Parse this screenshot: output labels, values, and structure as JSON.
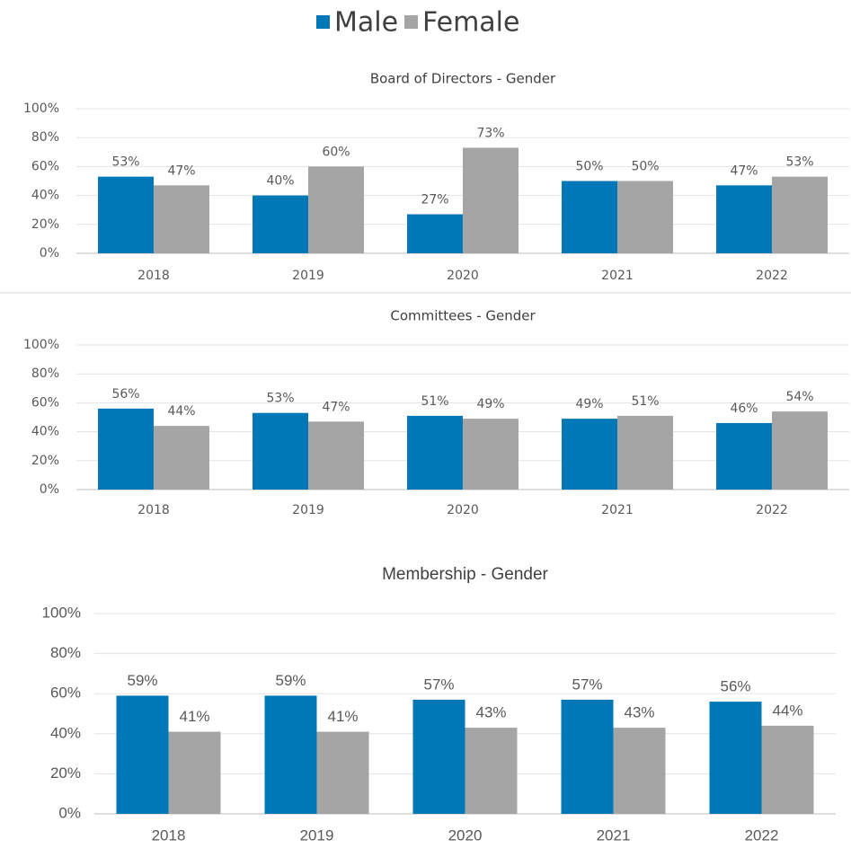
{
  "legend": {
    "items": [
      {
        "name": "Male",
        "color": "#0077b6"
      },
      {
        "name": "Female",
        "color": "#a5a5a5"
      }
    ]
  },
  "chart_data": [
    {
      "type": "bar",
      "title": "Board of Directors - Gender",
      "categories": [
        "2018",
        "2019",
        "2020",
        "2021",
        "2022"
      ],
      "series": [
        {
          "values": [
            53,
            40,
            27,
            50,
            47
          ],
          "value_labels": [
            "53%",
            "40%",
            "27%",
            "50%",
            "47%"
          ]
        },
        {
          "values": [
            47,
            60,
            73,
            50,
            53
          ],
          "value_labels": [
            "47%",
            "60%",
            "73%",
            "50%",
            "53%"
          ]
        }
      ],
      "ylim": [
        0,
        100
      ],
      "yticks": [
        {
          "value": 0,
          "label": "0%"
        },
        {
          "value": 20,
          "label": "20%"
        },
        {
          "value": 40,
          "label": "40%"
        },
        {
          "value": 60,
          "label": "60%"
        },
        {
          "value": 80,
          "label": "80%"
        },
        {
          "value": 100,
          "label": "100%"
        }
      ],
      "grid": true
    },
    {
      "type": "bar",
      "title": "Committees - Gender",
      "categories": [
        "2018",
        "2019",
        "2020",
        "2021",
        "2022"
      ],
      "series": [
        {
          "values": [
            56,
            53,
            51,
            49,
            46
          ],
          "value_labels": [
            "56%",
            "53%",
            "51%",
            "49%",
            "46%"
          ]
        },
        {
          "values": [
            44,
            47,
            49,
            51,
            54
          ],
          "value_labels": [
            "44%",
            "47%",
            "49%",
            "51%",
            "54%"
          ]
        }
      ],
      "ylim": [
        0,
        100
      ],
      "yticks": [
        {
          "value": 0,
          "label": "0%"
        },
        {
          "value": 20,
          "label": "20%"
        },
        {
          "value": 40,
          "label": "40%"
        },
        {
          "value": 60,
          "label": "60%"
        },
        {
          "value": 80,
          "label": "80%"
        },
        {
          "value": 100,
          "label": "100%"
        }
      ],
      "grid": true
    },
    {
      "type": "bar",
      "title": "Membership - Gender",
      "categories": [
        "2018",
        "2019",
        "2020",
        "2021",
        "2022"
      ],
      "series": [
        {
          "values": [
            59,
            59,
            57,
            57,
            56
          ],
          "value_labels": [
            "59%",
            "59%",
            "57%",
            "57%",
            "56%"
          ]
        },
        {
          "values": [
            41,
            41,
            43,
            43,
            44
          ],
          "value_labels": [
            "41%",
            "41%",
            "43%",
            "43%",
            "44%"
          ]
        }
      ],
      "ylim": [
        0,
        100
      ],
      "yticks": [
        {
          "value": 0,
          "label": "0%"
        },
        {
          "value": 20,
          "label": "20%"
        },
        {
          "value": 40,
          "label": "40%"
        },
        {
          "value": 60,
          "label": "60%"
        },
        {
          "value": 80,
          "label": "80%"
        },
        {
          "value": 100,
          "label": "100%"
        }
      ],
      "grid": true
    }
  ]
}
